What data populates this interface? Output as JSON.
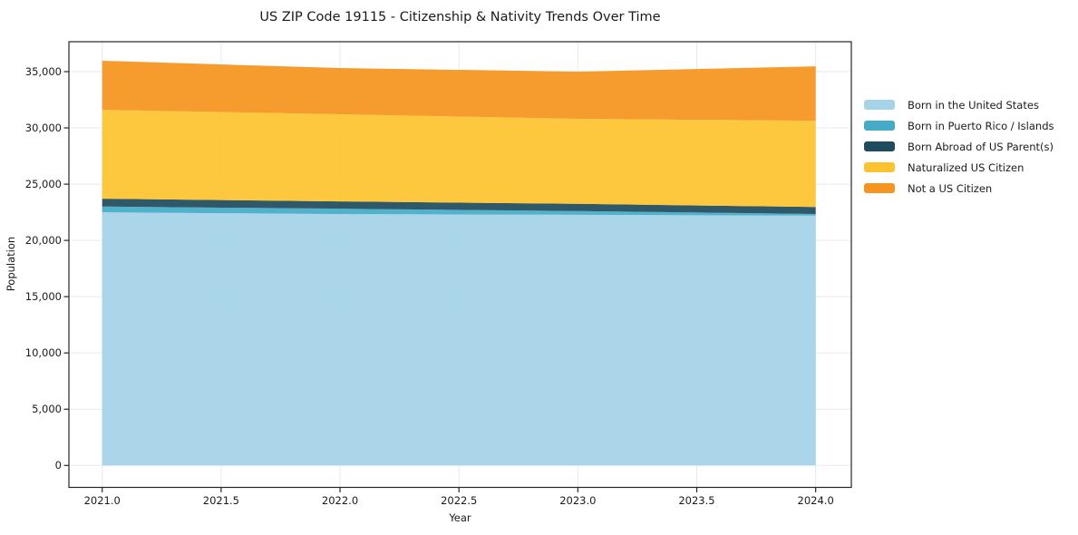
{
  "figure": {
    "background_color": "#ffffff",
    "axis_color": "#262626",
    "text_color": "#1a1a1a",
    "grid_color": "#e9e9f0"
  },
  "chart_data": {
    "type": "area",
    "stacked": true,
    "title": "US ZIP Code 19115 - Citizenship & Nativity Trends Over Time",
    "xlabel": "Year",
    "ylabel": "Population",
    "x": [
      2021,
      2022,
      2023,
      2024
    ],
    "series": [
      {
        "name": "Born in the United States",
        "color": "#a5d3e8",
        "values": [
          22500,
          22340,
          22280,
          22200
        ]
      },
      {
        "name": "Born in Puerto Rico / Islands",
        "color": "#45abc7",
        "values": [
          510,
          480,
          330,
          150
        ]
      },
      {
        "name": "Born Abroad of US Parent(s)",
        "color": "#1f4b5e",
        "values": [
          700,
          650,
          640,
          620
        ]
      },
      {
        "name": "Naturalized US Citizen",
        "color": "#fdc32f",
        "values": [
          7900,
          7740,
          7560,
          7660
        ]
      },
      {
        "name": "Not a US Citizen",
        "color": "#f5941f",
        "values": [
          4360,
          4110,
          4190,
          4840
        ]
      }
    ],
    "stack_totals": [
      35970,
      35320,
      35000,
      35470
    ],
    "xticks": [
      2021.0,
      2021.5,
      2022.0,
      2022.5,
      2023.0,
      2023.5,
      2024.0
    ],
    "xtick_labels": [
      "2021.0",
      "2021.5",
      "2022.0",
      "2022.5",
      "2023.0",
      "2023.5",
      "2024.0"
    ],
    "yticks": [
      0,
      5000,
      10000,
      15000,
      20000,
      25000,
      30000,
      35000
    ],
    "ytick_labels": [
      "0",
      "5,000",
      "10,000",
      "15,000",
      "20,000",
      "25,000",
      "30,000",
      "35,000"
    ],
    "xlim": [
      2020.86,
      2024.15
    ],
    "ylim": [
      -1950,
      37660
    ],
    "grid": true,
    "legend_position": "right",
    "fill_opacity": 0.93
  }
}
